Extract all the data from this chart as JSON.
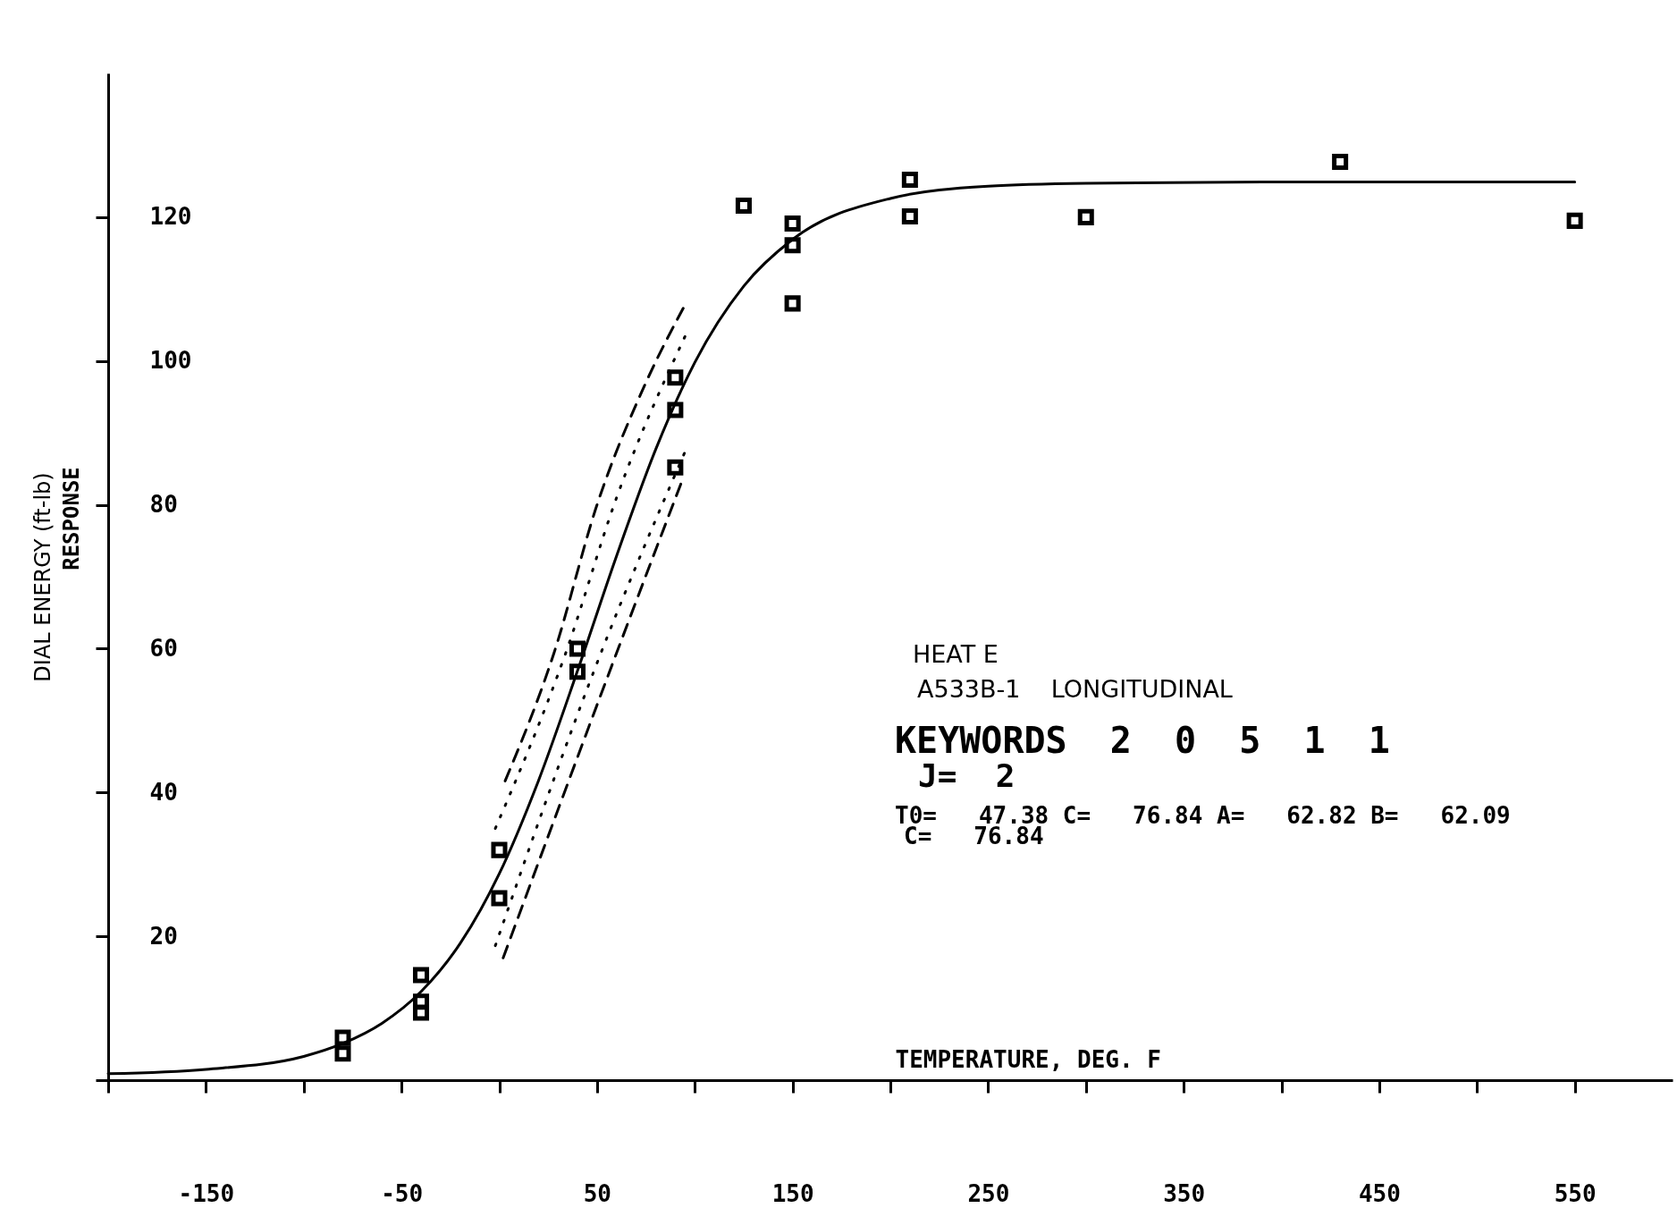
{
  "chart_data": {
    "type": "scatter",
    "xlabel": "TEMPERATURE, DEG. F",
    "ylabel": "DIAL ENERGY (ft-lb)",
    "annotations": [
      "RESPONSE",
      "HEAT E",
      "A533B-1    LONGITUDINAL",
      "KEYWORDS  2  0  5  1  1",
      "J=  2",
      "T0=   47.38 C=   76.84 A=   62.82 B=   62.09",
      "C=   76.84"
    ],
    "xlim": [
      -200,
      600
    ],
    "ylim": [
      0,
      140
    ],
    "xticks": [
      {
        "value": -200,
        "label": null
      },
      -150,
      {
        "value": -100,
        "label": null
      },
      -50,
      {
        "value": 0,
        "label": null
      },
      50,
      {
        "value": 100,
        "label": null
      },
      150,
      {
        "value": 200,
        "label": null
      },
      250,
      {
        "value": 300,
        "label": null
      },
      350,
      {
        "value": 400,
        "label": null
      },
      450,
      {
        "value": 500,
        "label": null
      },
      550
    ],
    "yticks": [
      {
        "value": 0,
        "label": null
      },
      20,
      40,
      60,
      80,
      100,
      120
    ],
    "grid": false,
    "series": [
      {
        "marker": "square",
        "color": "#000000",
        "x": [
          -80,
          -80,
          -40,
          -40,
          -40,
          0,
          0,
          40,
          40,
          90,
          90,
          90,
          125,
          150,
          150,
          150,
          210,
          210,
          300,
          430,
          550
        ],
        "values": [
          5.9,
          3.7,
          14.6,
          10.9,
          9.4,
          32.0,
          25.3,
          60.0,
          56.8,
          97.7,
          93.2,
          85.2,
          121.6,
          119.1,
          116.1,
          108.0,
          125.2,
          120.1,
          120.0,
          127.7,
          119.5
        ]
      },
      {
        "type": "line",
        "line_style": "solid",
        "color": "#000000",
        "x": [
          -200,
          -150,
          -100,
          -80,
          -60,
          -40,
          -20,
          0,
          20,
          40,
          60,
          80,
          100,
          125,
          150,
          200,
          250,
          300,
          400,
          550
        ],
        "values": [
          0.9,
          1.5,
          3.3,
          5.1,
          7.9,
          12.3,
          19.0,
          28.7,
          41.6,
          56.9,
          72.9,
          87.7,
          99.8,
          110.4,
          116.9,
          122.6,
          124.3,
          124.7,
          124.9,
          124.9
        ]
      },
      {
        "type": "line",
        "line_style": "dashed",
        "color": "#000000",
        "x": [
          3,
          28,
          50,
          75,
          96
        ],
        "values": [
          41.6,
          59.4,
          80,
          97,
          108.3
        ]
      },
      {
        "type": "line",
        "line_style": "dotted",
        "color": "#000000",
        "x": [
          -2,
          34,
          60,
          96
        ],
        "values": [
          35,
          59.4,
          81,
          104
        ]
      },
      {
        "type": "line",
        "line_style": "dotted",
        "color": "#000000",
        "x": [
          -2,
          52,
          96
        ],
        "values": [
          18.7,
          59.4,
          88
        ]
      },
      {
        "type": "line",
        "line_style": "dashed",
        "color": "#000000",
        "x": [
          2,
          60,
          93
        ],
        "values": [
          17,
          59.4,
          83
        ]
      }
    ]
  }
}
